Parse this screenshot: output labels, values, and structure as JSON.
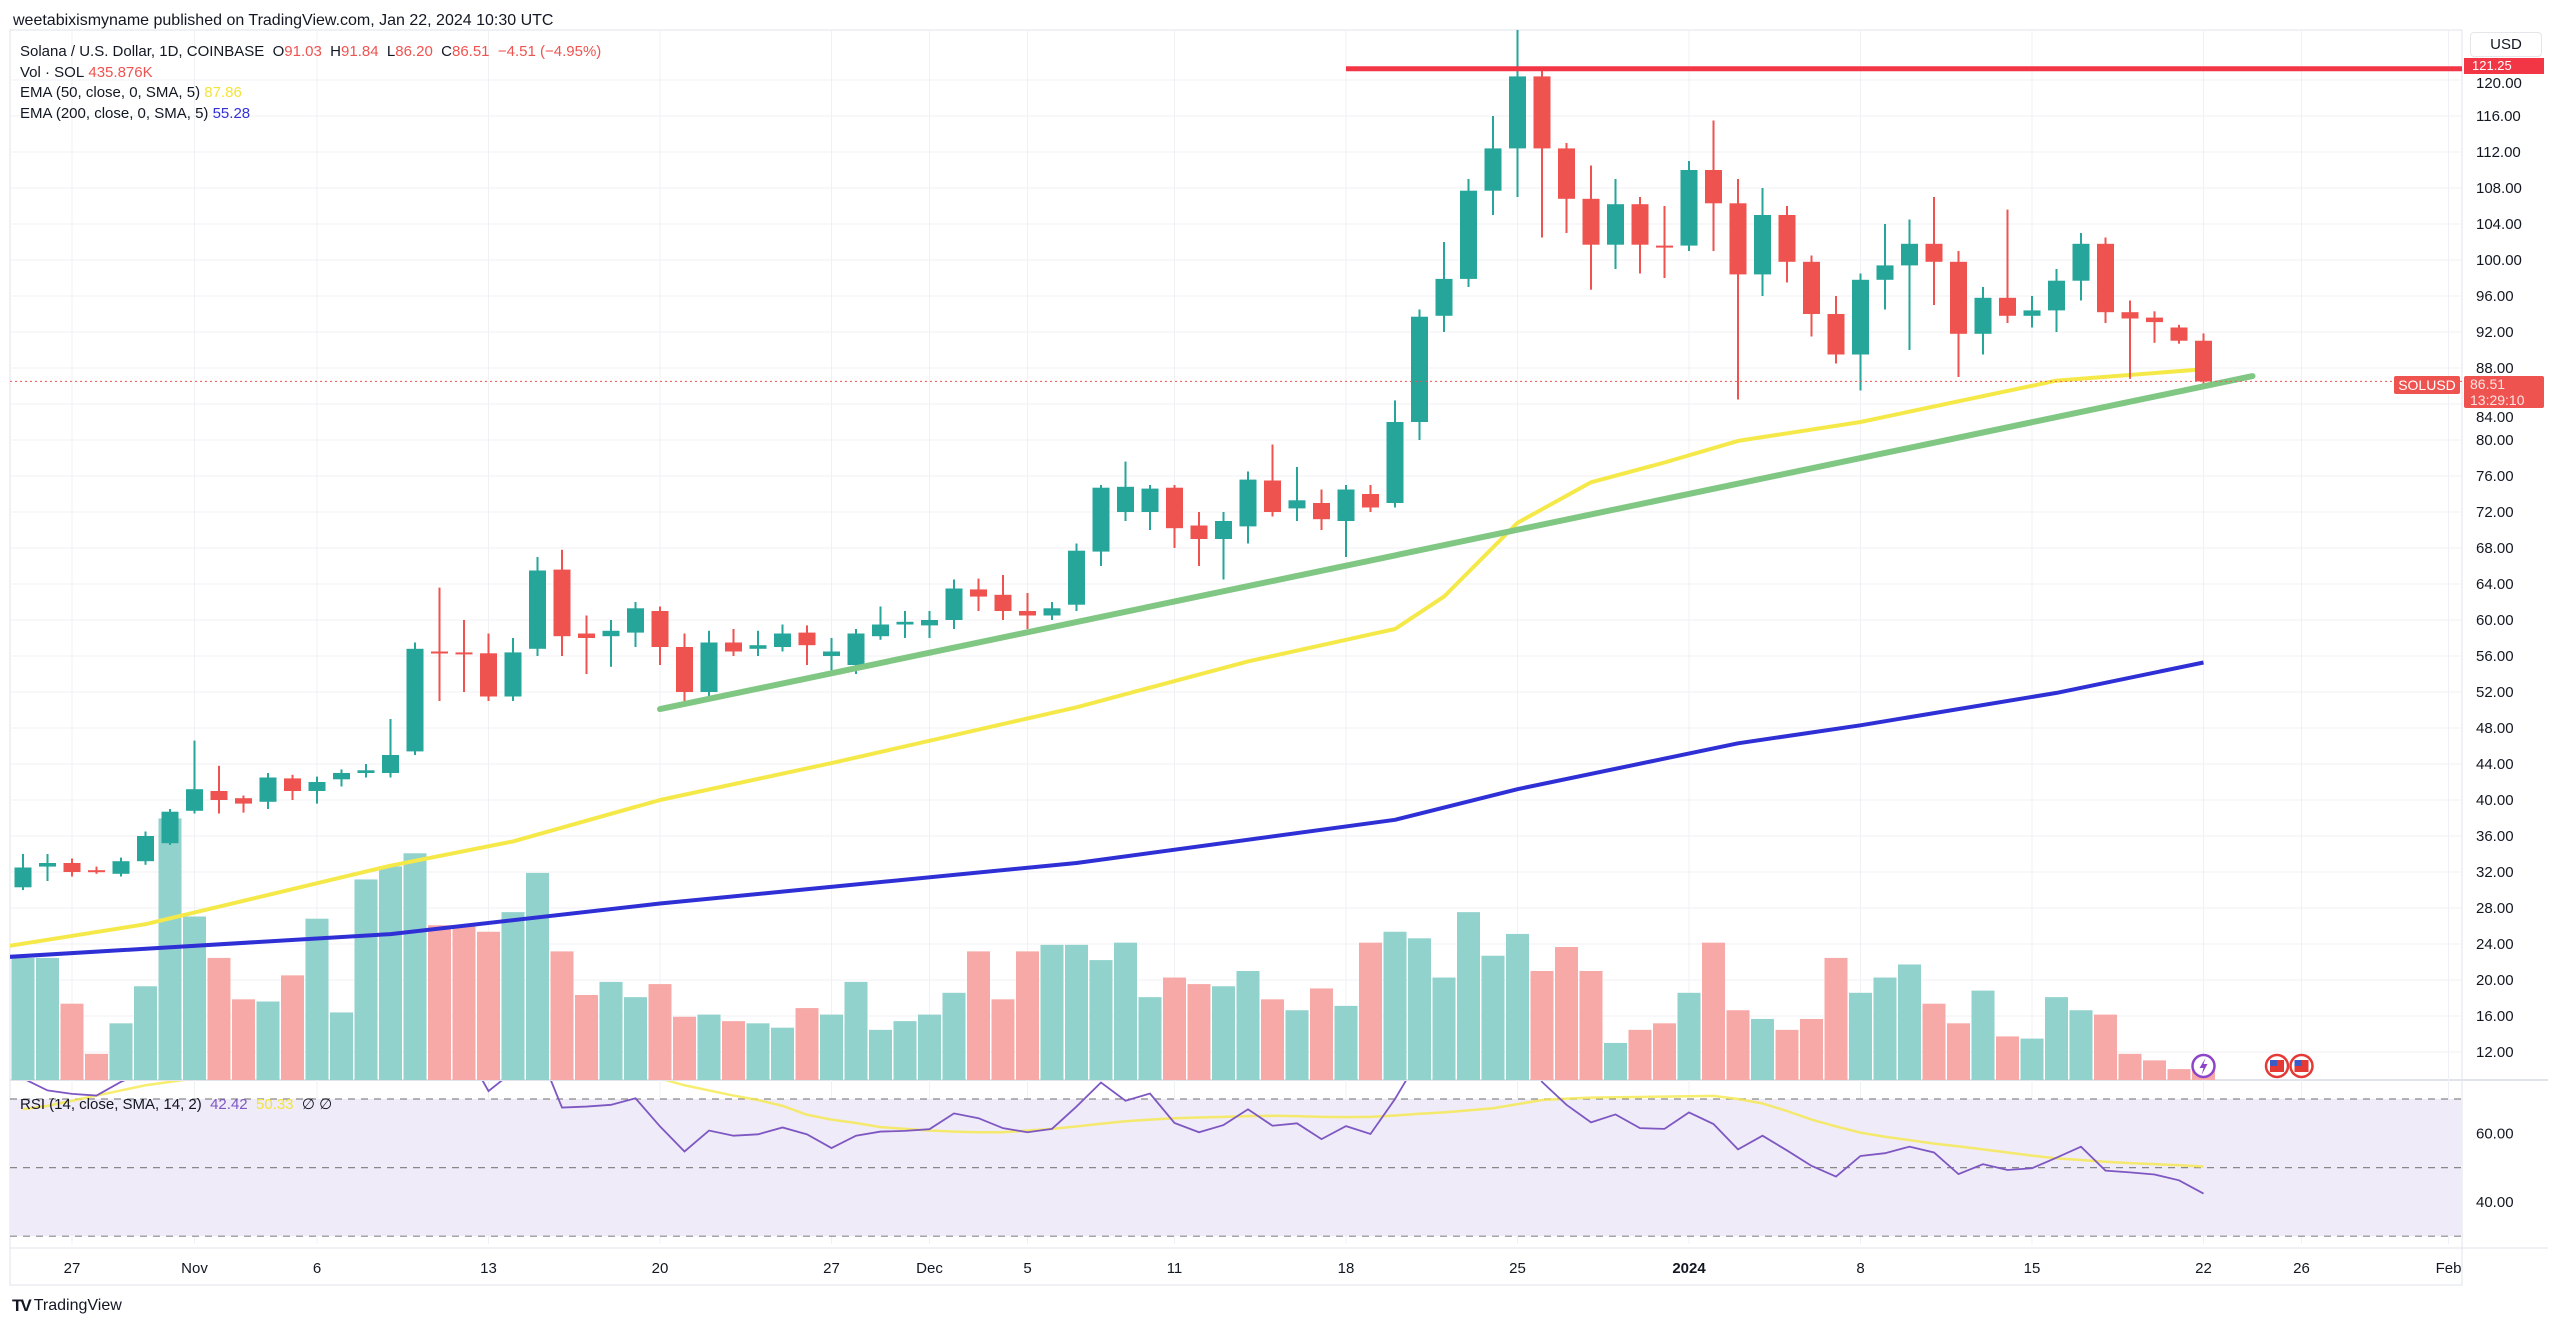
{
  "published": "weetabixismyname published on TradingView.com, Jan 22, 2024 10:30 UTC",
  "legend": {
    "symbol": "Solana / U.S. Dollar, 1D, COINBASE",
    "o_label": "O",
    "o": "91.03",
    "h_label": "H",
    "h": "91.84",
    "l_label": "L",
    "l": "86.20",
    "c_label": "C",
    "c": "86.51",
    "change": "−4.51 (−4.95%)",
    "vol_label": "Vol · SOL",
    "vol": "435.876K",
    "ema50_label": "EMA (50, close, 0, SMA, 5)",
    "ema50": "87.86",
    "ema200_label": "EMA (200, close, 0, SMA, 5)",
    "ema200": "55.28",
    "rsi_label": "RSI (14, close, SMA, 14, 2)",
    "rsi": "42.42",
    "rsi_sma": "50.33",
    "rsi_extra": "∅ ∅"
  },
  "price_axis": {
    "currency": "USD",
    "ticks": [
      "120.00",
      "116.00",
      "112.00",
      "108.00",
      "104.00",
      "100.00",
      "96.00",
      "92.00",
      "88.00",
      "84.00",
      "80.00",
      "76.00",
      "72.00",
      "68.00",
      "64.00",
      "60.00",
      "56.00",
      "52.00",
      "48.00",
      "44.00",
      "40.00",
      "36.00",
      "32.00",
      "28.00",
      "24.00",
      "20.00",
      "16.00",
      "12.00"
    ],
    "symbol_tag": "SOLUSD",
    "last_price": "86.51",
    "countdown": "13:29:10",
    "level_tag": "121.25"
  },
  "rsi_axis": {
    "ticks": [
      "60.00",
      "40.00"
    ]
  },
  "time_axis": [
    {
      "label": "27",
      "date": "2023-10-27"
    },
    {
      "label": "Nov",
      "date": "2023-11-01"
    },
    {
      "label": "6",
      "date": "2023-11-06"
    },
    {
      "label": "13",
      "date": "2023-11-13"
    },
    {
      "label": "20",
      "date": "2023-11-20"
    },
    {
      "label": "27",
      "date": "2023-11-27"
    },
    {
      "label": "Dec",
      "date": "2023-12-01"
    },
    {
      "label": "5",
      "date": "2023-12-05"
    },
    {
      "label": "11",
      "date": "2023-12-11"
    },
    {
      "label": "18",
      "date": "2023-12-18"
    },
    {
      "label": "25",
      "date": "2023-12-25"
    },
    {
      "label": "2024",
      "date": "2024-01-01",
      "bold": true
    },
    {
      "label": "8",
      "date": "2024-01-08"
    },
    {
      "label": "15",
      "date": "2024-01-15"
    },
    {
      "label": "22",
      "date": "2024-01-22"
    },
    {
      "label": "26",
      "date": "2024-01-26"
    },
    {
      "label": "Feb",
      "date": "2024-02-01"
    }
  ],
  "logo": "TradingView",
  "colors": {
    "up": "#26a69a",
    "down": "#ef5350",
    "vol_up": "#92d2cc",
    "vol_down": "#f7a9a7",
    "ema50": "#f5e94a",
    "ema200": "#2f2fd6",
    "trend": "#81c784",
    "level": "#f23645",
    "rsi": "#7e57c2",
    "rsi_sma": "#f5e94a",
    "rsi_bg": "#efebf8"
  },
  "icons": [
    "lightning-event-icon",
    "us-flag-event-icon",
    "us-flag-event-icon"
  ],
  "chart_data": {
    "type": "candlestick",
    "columns": [
      "date",
      "open",
      "high",
      "low",
      "close",
      "volume_millions"
    ],
    "candles": [
      [
        "2023-10-25",
        30.3,
        34,
        30,
        32.5,
        5.6
      ],
      [
        "2023-10-26",
        32.6,
        34,
        31,
        33,
        5.6
      ],
      [
        "2023-10-27",
        33,
        33.5,
        31.5,
        32,
        3.5
      ],
      [
        "2023-10-28",
        32.2,
        32.6,
        31.8,
        32,
        1.2
      ],
      [
        "2023-10-29",
        31.8,
        33.6,
        31.5,
        33.2,
        2.6
      ],
      [
        "2023-10-30",
        33.2,
        36.5,
        32.8,
        36,
        4.3
      ],
      [
        "2023-10-31",
        35.2,
        39,
        35,
        38.7,
        12.0
      ],
      [
        "2023-11-01",
        38.8,
        46.6,
        38.5,
        41.2,
        7.5
      ],
      [
        "2023-11-02",
        41,
        43.8,
        38.5,
        40,
        5.6
      ],
      [
        "2023-11-03",
        40.2,
        40.5,
        38.6,
        39.6,
        3.7
      ],
      [
        "2023-11-04",
        39.8,
        43,
        39,
        42.5,
        3.6
      ],
      [
        "2023-11-05",
        42.4,
        42.8,
        40,
        41,
        4.8
      ],
      [
        "2023-11-06",
        41,
        42.6,
        39.6,
        42,
        7.4
      ],
      [
        "2023-11-07",
        42.3,
        43.4,
        41.5,
        43,
        3.1
      ],
      [
        "2023-11-08",
        43,
        44,
        42.5,
        43.3,
        9.2
      ],
      [
        "2023-11-09",
        43,
        49,
        42.5,
        45,
        9.8
      ],
      [
        "2023-11-10",
        45.4,
        57.5,
        45,
        56.8,
        10.4
      ],
      [
        "2023-11-11",
        56.5,
        63.6,
        51,
        56.3,
        7.1
      ],
      [
        "2023-11-12",
        56.4,
        60,
        52,
        56.2,
        7.1
      ],
      [
        "2023-11-13",
        56.3,
        58.5,
        51,
        51.5,
        6.8
      ],
      [
        "2023-11-14",
        51.5,
        58,
        51,
        56.4,
        7.7
      ],
      [
        "2023-11-15",
        56.8,
        67,
        56,
        65.5,
        9.5
      ],
      [
        "2023-11-16",
        65.6,
        67.8,
        56,
        58.2,
        5.9
      ],
      [
        "2023-11-17",
        58.5,
        60.5,
        54,
        58,
        3.9
      ],
      [
        "2023-11-18",
        58.2,
        60,
        54.8,
        58.8,
        4.5
      ],
      [
        "2023-11-19",
        58.6,
        62,
        57,
        61.3,
        3.8
      ],
      [
        "2023-11-20",
        61,
        61.5,
        55,
        57,
        4.4
      ],
      [
        "2023-11-21",
        57,
        58.5,
        51,
        52,
        2.9
      ],
      [
        "2023-11-22",
        52,
        58.8,
        51.5,
        57.5,
        3.0
      ],
      [
        "2023-11-23",
        57.5,
        59,
        56,
        56.5,
        2.7
      ],
      [
        "2023-11-24",
        56.8,
        58.8,
        56,
        57.2,
        2.6
      ],
      [
        "2023-11-25",
        57,
        59.5,
        56.5,
        58.5,
        2.4
      ],
      [
        "2023-11-26",
        58.6,
        59.4,
        55,
        57.2,
        3.3
      ],
      [
        "2023-11-27",
        56,
        58,
        54,
        56.5,
        3.0
      ],
      [
        "2023-11-28",
        55,
        59,
        54,
        58.5,
        4.5
      ],
      [
        "2023-11-29",
        58.2,
        61.5,
        57.8,
        59.5,
        2.3
      ],
      [
        "2023-11-30",
        59.5,
        61,
        58,
        59.8,
        2.7
      ],
      [
        "2023-12-01",
        59.4,
        61,
        58,
        60,
        3.0
      ],
      [
        "2023-12-02",
        60,
        64.5,
        59,
        63.5,
        4.0
      ],
      [
        "2023-12-03",
        63.4,
        64.6,
        61,
        62.6,
        5.9
      ],
      [
        "2023-12-04",
        62.8,
        65,
        60,
        61,
        3.7
      ],
      [
        "2023-12-05",
        61,
        63,
        59,
        60.5,
        5.9
      ],
      [
        "2023-12-06",
        60.5,
        62,
        60,
        61.3,
        6.2
      ],
      [
        "2023-12-07",
        61.7,
        68.5,
        61,
        67.7,
        6.2
      ],
      [
        "2023-12-08",
        67.6,
        75,
        66,
        74.7,
        5.5
      ],
      [
        "2023-12-09",
        72,
        77.6,
        71,
        74.8,
        6.3
      ],
      [
        "2023-12-10",
        72,
        75,
        70,
        74.6,
        3.8
      ],
      [
        "2023-12-11",
        74.7,
        75,
        68,
        70.2,
        4.7
      ],
      [
        "2023-12-12",
        70.5,
        72,
        66,
        69,
        4.4
      ],
      [
        "2023-12-13",
        69,
        72,
        64.5,
        71,
        4.3
      ],
      [
        "2023-12-14",
        70.4,
        76.5,
        68.5,
        75.6,
        5.0
      ],
      [
        "2023-12-15",
        75.5,
        79.5,
        71.5,
        72,
        3.7
      ],
      [
        "2023-12-16",
        72.4,
        77,
        71,
        73.3,
        3.2
      ],
      [
        "2023-12-17",
        73,
        74.5,
        70,
        71.2,
        4.2
      ],
      [
        "2023-12-18",
        71,
        75,
        67,
        74.5,
        3.4
      ],
      [
        "2023-12-19",
        74,
        75,
        72,
        72.5,
        6.3
      ],
      [
        "2023-12-20",
        73,
        84.4,
        72.5,
        82,
        6.8
      ],
      [
        "2023-12-21",
        82,
        94.5,
        80,
        93.7,
        6.5
      ],
      [
        "2023-12-22",
        93.8,
        102,
        92,
        97.9,
        4.7
      ],
      [
        "2023-12-23",
        97.9,
        109,
        97,
        107.7,
        7.7
      ],
      [
        "2023-12-24",
        107.7,
        116,
        105,
        112.4,
        5.7
      ],
      [
        "2023-12-25",
        112.4,
        125.6,
        107,
        120.4,
        6.7
      ],
      [
        "2023-12-26",
        120.4,
        121.5,
        102.5,
        112.4,
        5.0
      ],
      [
        "2023-12-27",
        112.4,
        113,
        103,
        106.8,
        6.1
      ],
      [
        "2023-12-28",
        106.8,
        110.5,
        96.7,
        101.7,
        5.0
      ],
      [
        "2023-12-29",
        101.7,
        109,
        99,
        106.2,
        1.7
      ],
      [
        "2023-12-30",
        106.2,
        107,
        98.5,
        101.7,
        2.3
      ],
      [
        "2023-12-31",
        101.6,
        106,
        98,
        101.5,
        2.6
      ],
      [
        "2024-01-01",
        101.6,
        111,
        101,
        110,
        4.0
      ],
      [
        "2024-01-02",
        110,
        115.5,
        101,
        106.3,
        6.3
      ],
      [
        "2024-01-03",
        106.3,
        109,
        84.5,
        98.4,
        3.2
      ],
      [
        "2024-01-04",
        98.4,
        108,
        96,
        105,
        2.8
      ],
      [
        "2024-01-05",
        105,
        106,
        97.5,
        99.8,
        2.3
      ],
      [
        "2024-01-06",
        99.8,
        100.5,
        91.5,
        94,
        2.8
      ],
      [
        "2024-01-07",
        94,
        96,
        88.5,
        89.5,
        5.6
      ],
      [
        "2024-01-08",
        89.5,
        98.5,
        85.5,
        97.8,
        4.0
      ],
      [
        "2024-01-09",
        97.8,
        104,
        94.5,
        99.4,
        4.7
      ],
      [
        "2024-01-10",
        99.4,
        104.5,
        90,
        101.8,
        5.3
      ],
      [
        "2024-01-11",
        101.8,
        107,
        95,
        99.8,
        3.5
      ],
      [
        "2024-01-12",
        99.8,
        101,
        87,
        91.8,
        2.6
      ],
      [
        "2024-01-13",
        91.8,
        97,
        89.5,
        95.8,
        4.1
      ],
      [
        "2024-01-14",
        95.8,
        105.6,
        93,
        93.8,
        2.0
      ],
      [
        "2024-01-15",
        93.8,
        96,
        92.5,
        94.4,
        1.9
      ],
      [
        "2024-01-16",
        94.4,
        99,
        92,
        97.7,
        3.8
      ],
      [
        "2024-01-17",
        97.7,
        103,
        95.5,
        101.8,
        3.2
      ],
      [
        "2024-01-18",
        101.8,
        102.5,
        93,
        94.2,
        3.0
      ],
      [
        "2024-01-19",
        94.2,
        95.5,
        86.8,
        93.5,
        1.2
      ],
      [
        "2024-01-20",
        93.6,
        94.3,
        90.8,
        93.1,
        0.9
      ],
      [
        "2024-01-21",
        92.5,
        92.8,
        90.7,
        91.03,
        0.5
      ],
      [
        "2024-01-22",
        91.03,
        91.84,
        86.2,
        86.51,
        0.436
      ]
    ],
    "ema50": [
      [
        "2023-10-24",
        23.6
      ],
      [
        "2023-10-30",
        26.2
      ],
      [
        "2023-11-09",
        32.7
      ],
      [
        "2023-11-14",
        35.4
      ],
      [
        "2023-11-20",
        40
      ],
      [
        "2023-11-27",
        44.1
      ],
      [
        "2023-12-07",
        50.3
      ],
      [
        "2023-12-14",
        55.4
      ],
      [
        "2023-12-20",
        59
      ],
      [
        "2023-12-22",
        62.6
      ],
      [
        "2023-12-25",
        70.8
      ],
      [
        "2023-12-28",
        75.3
      ],
      [
        "2023-12-31",
        77.5
      ],
      [
        "2024-01-03",
        79.9
      ],
      [
        "2024-01-08",
        82
      ],
      [
        "2024-01-16",
        86.6
      ],
      [
        "2024-01-22",
        87.86
      ]
    ],
    "ema200": [
      [
        "2023-10-24",
        22.5
      ],
      [
        "2023-11-09",
        25.1
      ],
      [
        "2023-11-20",
        28.5
      ],
      [
        "2023-12-07",
        33
      ],
      [
        "2023-12-20",
        37.8
      ],
      [
        "2023-12-25",
        41.2
      ],
      [
        "2024-01-03",
        46.3
      ],
      [
        "2024-01-08",
        48.3
      ],
      [
        "2024-01-16",
        51.9
      ],
      [
        "2024-01-22",
        55.28
      ]
    ],
    "trendline": [
      [
        "2023-11-20",
        50.1
      ],
      [
        "2024-01-24",
        87.1
      ]
    ],
    "level_line": {
      "from": "2023-12-18",
      "price": 121.25
    },
    "rsi": [
      76,
      72.5,
      71.5,
      71,
      75,
      78,
      84,
      85,
      80,
      79,
      81,
      79,
      79,
      80,
      81,
      83,
      90,
      86,
      85,
      72.3,
      78,
      85,
      67.5,
      67.8,
      68.3,
      70.2,
      62,
      54.7,
      60.8,
      59.3,
      59.7,
      61.7,
      59.7,
      55.7,
      59.3,
      60.5,
      60.7,
      61.2,
      65.8,
      64.4,
      61.5,
      60.3,
      61.3,
      67.8,
      74.8,
      69.5,
      71.6,
      63,
      60.3,
      62.4,
      67,
      62.2,
      62.9,
      58.3,
      62.1,
      59.8,
      70,
      82,
      85,
      89,
      91,
      92,
      75,
      68.3,
      63.2,
      65.5,
      61.5,
      61.3,
      66.1,
      62.7,
      55.3,
      59.3,
      55,
      50.5,
      47.4,
      53.4,
      54.2,
      56.1,
      54.4,
      48.1,
      51,
      49.3,
      49.8,
      52.9,
      56.1,
      49.1,
      48.6,
      48,
      46.3,
      42.42
    ],
    "rsi_sma": [
      67,
      68,
      69.5,
      71,
      72.5,
      74,
      75,
      76,
      77,
      77.5,
      78,
      78.5,
      79,
      79,
      79.5,
      80,
      80.5,
      81,
      81,
      80.5,
      80.5,
      80.5,
      80,
      79,
      78,
      77,
      76,
      74,
      72.5,
      71,
      69.7,
      68,
      65.4,
      64,
      63,
      61.8,
      61.3,
      60.8,
      60.5,
      60.3,
      60.3,
      60.8,
      61.3,
      62,
      62.8,
      63.5,
      64,
      64.4,
      64.6,
      64.8,
      65,
      65.1,
      65,
      64.8,
      64.7,
      64.8,
      65.2,
      65.7,
      66.1,
      66.7,
      67.3,
      68.5,
      69.7,
      70.1,
      70.4,
      70.5,
      70.6,
      70.7,
      70.8,
      70.9,
      70,
      68.7,
      66.5,
      64,
      62,
      60.2,
      59,
      58,
      57,
      56.2,
      55.3,
      54.4,
      53.5,
      52.7,
      52.2,
      51.7,
      51.3,
      51,
      50.7,
      50.33
    ],
    "rsi_levels": [
      70,
      50,
      30
    ],
    "ylim": [
      8,
      126
    ],
    "rsi_ylim": [
      25,
      75
    ],
    "grid": true
  }
}
